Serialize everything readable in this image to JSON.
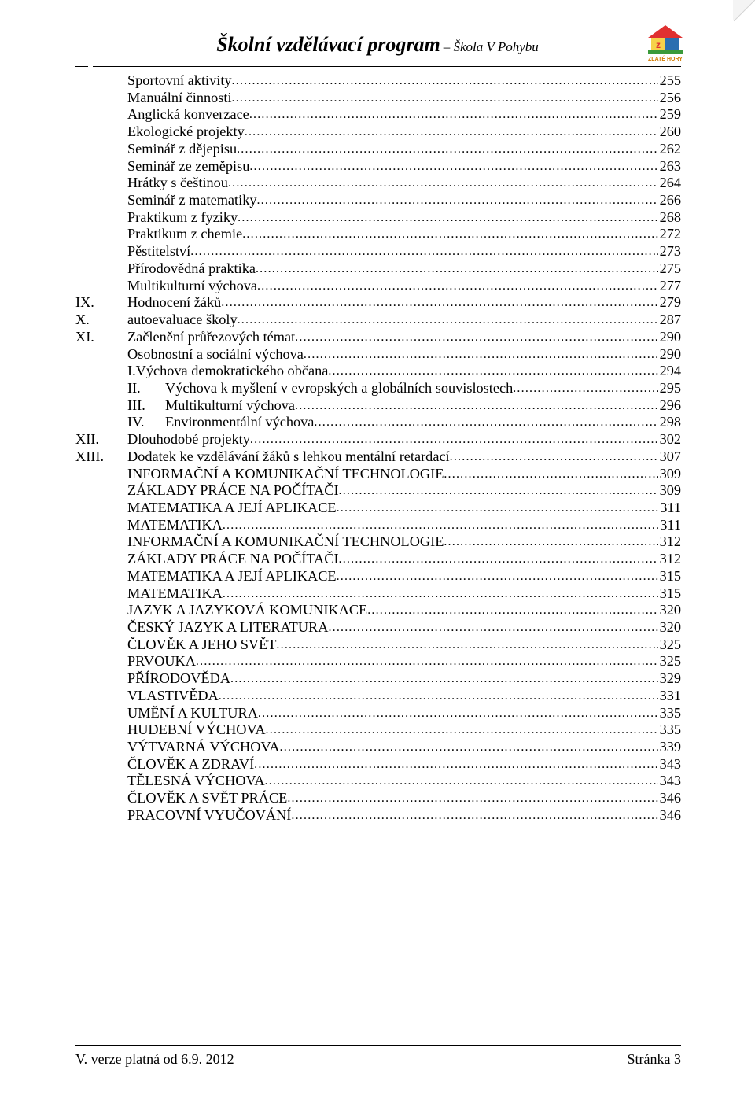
{
  "header": {
    "title": "Školní vzdělávací program",
    "subtitle": " – Škola V Pohybu",
    "logo_caption": "ZLATÉ HORY",
    "logo_colors": {
      "roof": "#e03030",
      "wall_left": "#f6d24a",
      "wall_right": "#2a6fb0",
      "ground": "#3a9a3a",
      "text_z": "#e03030",
      "text_s": "#2a6fb0",
      "caption": "#d07a00"
    }
  },
  "toc": [
    {
      "indent": 1,
      "label": "Sportovní aktivity",
      "page": "255"
    },
    {
      "indent": 1,
      "label": "Manuální činnosti",
      "page": "256"
    },
    {
      "indent": 1,
      "label": "Anglická konverzace",
      "page": "259"
    },
    {
      "indent": 1,
      "label": "Ekologické projekty",
      "page": "260"
    },
    {
      "indent": 1,
      "label": "Seminář z dějepisu",
      "page": "262"
    },
    {
      "indent": 1,
      "label": "Seminář ze zeměpisu",
      "page": "263"
    },
    {
      "indent": 1,
      "label": "Hrátky s češtinou",
      "page": "264"
    },
    {
      "indent": 1,
      "label": "Seminář z matematiky",
      "page": "266"
    },
    {
      "indent": 1,
      "label": "Praktikum z fyziky",
      "page": "268"
    },
    {
      "indent": 1,
      "label": "Praktikum z chemie",
      "page": "272"
    },
    {
      "indent": 1,
      "label": "Pěstitelství",
      "page": "273"
    },
    {
      "indent": 1,
      "label": "Přírodovědná praktika",
      "page": "275"
    },
    {
      "indent": 1,
      "label": "Multikulturní výchova",
      "page": "277"
    },
    {
      "roman": "IX.",
      "label": "Hodnocení žáků",
      "page": "279"
    },
    {
      "roman": "X.",
      "label": "autoevaluace školy",
      "page": "287"
    },
    {
      "roman": "XI.",
      "label": "Začlenění průřezových témat",
      "page": "290"
    },
    {
      "indent": 1,
      "label": "Osobnostní a sociální výchova",
      "page": "290"
    },
    {
      "indent": 1,
      "label": "I.Výchova demokratického občana",
      "page": "294"
    },
    {
      "sub": "II.",
      "label": "Výchova k myšlení v evropských a globálních souvislostech",
      "page": "295"
    },
    {
      "sub": "III.",
      "label": "Multikulturní výchova",
      "page": "296"
    },
    {
      "sub": "IV.",
      "label": "Environmentální výchova",
      "page": "298"
    },
    {
      "roman": "XII.",
      "label": "Dlouhodobé projekty",
      "page": "302"
    },
    {
      "roman": "XIII.",
      "label": "Dodatek ke vzdělávání žáků s lehkou mentální retardací",
      "page": "307"
    },
    {
      "indent": 1,
      "label": "INFORMAČNÍ  A  KOMUNIKAČNÍ  TECHNOLOGIE",
      "page": "309"
    },
    {
      "indent": 1,
      "label": "ZÁKLADY  PRÁCE  NA  POČÍTAČI",
      "page": "309"
    },
    {
      "indent": 1,
      "label": "MATEMATIKA A JEJÍ APLIKACE",
      "page": "311"
    },
    {
      "indent": 1,
      "label": "MATEMATIKA",
      "page": "311"
    },
    {
      "indent": 1,
      "label": "INFORMAČNÍ  A  KOMUNIKAČNÍ  TECHNOLOGIE",
      "page": "312"
    },
    {
      "indent": 1,
      "label": "ZÁKLADY  PRÁCE  NA  POČÍTAČI",
      "page": "312"
    },
    {
      "indent": 1,
      "label": "MATEMATIKA A JEJÍ APLIKACE",
      "page": "315"
    },
    {
      "indent": 1,
      "label": "MATEMATIKA",
      "page": "315"
    },
    {
      "indent": 1,
      "label": "JAZYK  A  JAZYKOVÁ KOMUNIKACE",
      "page": "320"
    },
    {
      "indent": 1,
      "label": "ČESKÝ  JAZYK A LITERATURA",
      "page": "320"
    },
    {
      "indent": 1,
      "label": "ČLOVĚK  A  JEHO  SVĚT",
      "page": "325"
    },
    {
      "indent": 1,
      "label": "PRVOUKA",
      "page": "325"
    },
    {
      "indent": 1,
      "label": "PŘÍRODOVĚDA",
      "page": "329"
    },
    {
      "indent": 1,
      "label": "VLASTIVĚDA",
      "page": "331"
    },
    {
      "indent": 1,
      "label": "UMĚNÍ  A  KULTURA",
      "page": "335"
    },
    {
      "indent": 1,
      "label": "HUDEBNÍ  VÝCHOVA",
      "page": "335"
    },
    {
      "indent": 1,
      "label": "VÝTVARNÁ  VÝCHOVA",
      "page": "339"
    },
    {
      "indent": 1,
      "label": "ČLOVĚK  A  ZDRAVÍ",
      "page": "343"
    },
    {
      "indent": 1,
      "label": "TĚLESNÁ  VÝCHOVA",
      "page": "343"
    },
    {
      "indent": 1,
      "label": "ČLOVĚK  A  SVĚT  PRÁCE",
      "page": "346"
    },
    {
      "indent": 1,
      "label": "PRACOVNÍ  VYUČOVÁNÍ",
      "page": "346"
    }
  ],
  "footer": {
    "left": "V. verze platná od 6.9. 2012",
    "right": "Stránka 3"
  }
}
